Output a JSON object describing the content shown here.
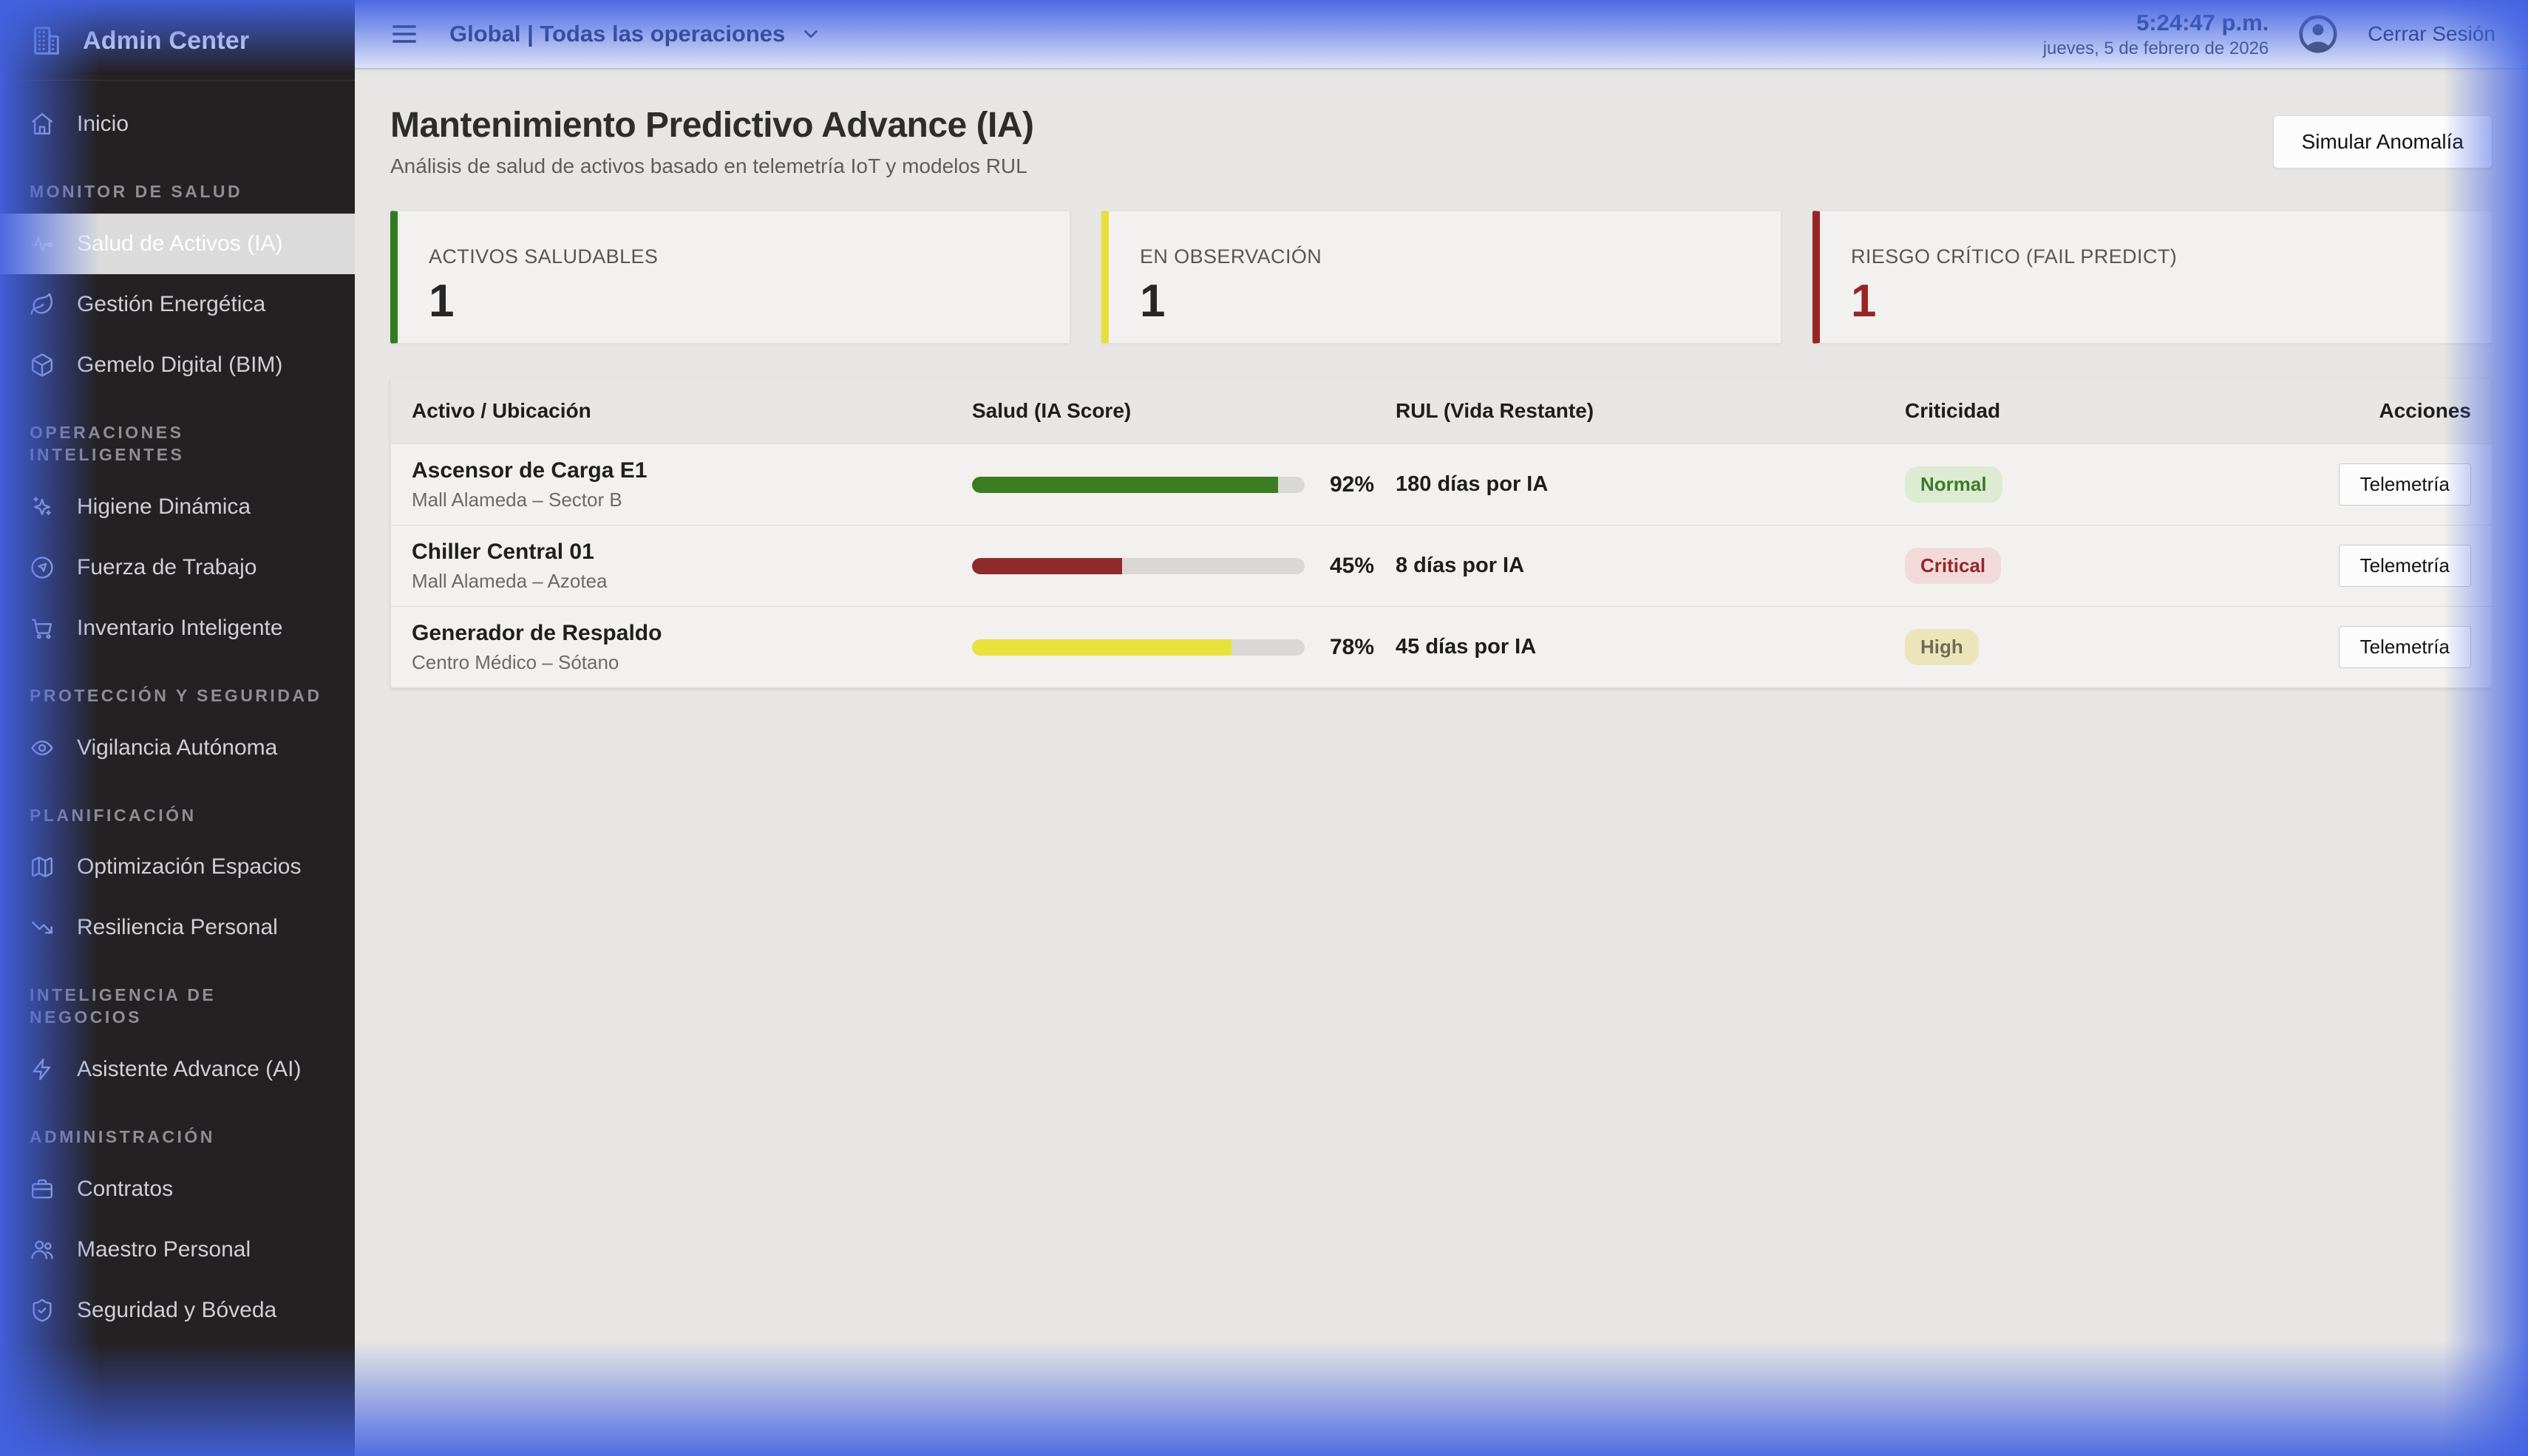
{
  "app": {
    "title": "Admin Center",
    "logo_icon": "building-icon"
  },
  "topbar": {
    "menu_icon": "hamburger-menu-icon",
    "scope": {
      "label": "Global | Todas las operaciones",
      "chevron_icon": "chevron-down-icon"
    },
    "clock": {
      "time": "5:24:47 p.m.",
      "date": "jueves, 5 de febrero de 2026"
    },
    "user": {
      "avatar_icon": "user-avatar-icon",
      "logout_label": "Cerrar Sesión"
    }
  },
  "sidebar": {
    "sections": [
      {
        "heading": "",
        "items": [
          {
            "id": "inicio",
            "label": "Inicio",
            "icon": "home-icon",
            "active": false
          }
        ]
      },
      {
        "heading": "MONITOR DE SALUD",
        "items": [
          {
            "id": "salud-activos",
            "label": "Salud de Activos (IA)",
            "icon": "activity-icon",
            "active": true
          },
          {
            "id": "gestion-energetica",
            "label": "Gestión Energética",
            "icon": "leaf-icon",
            "active": false
          },
          {
            "id": "gemelo-digital",
            "label": "Gemelo Digital (BIM)",
            "icon": "cube-icon",
            "active": false
          }
        ]
      },
      {
        "heading": "OPERACIONES INTELIGENTES",
        "items": [
          {
            "id": "higiene-dinamica",
            "label": "Higiene Dinámica",
            "icon": "sparkles-icon",
            "active": false
          },
          {
            "id": "fuerza-trabajo",
            "label": "Fuerza de Trabajo",
            "icon": "compass-icon",
            "active": false
          },
          {
            "id": "inventario-inteligente",
            "label": "Inventario Inteligente",
            "icon": "cart-icon",
            "active": false
          }
        ]
      },
      {
        "heading": "PROTECCIÓN Y SEGURIDAD",
        "items": [
          {
            "id": "vigilancia-autonoma",
            "label": "Vigilancia Autónoma",
            "icon": "eye-icon",
            "active": false
          }
        ]
      },
      {
        "heading": "PLANIFICACIÓN",
        "items": [
          {
            "id": "optimizacion-espacios",
            "label": "Optimización Espacios",
            "icon": "map-icon",
            "active": false
          },
          {
            "id": "resiliencia-personal",
            "label": "Resiliencia Personal",
            "icon": "trending-down-icon",
            "active": false
          }
        ]
      },
      {
        "heading": "INTELIGENCIA DE NEGOCIOS",
        "items": [
          {
            "id": "asistente-advance",
            "label": "Asistente Advance (AI)",
            "icon": "zap-icon",
            "active": false
          }
        ]
      },
      {
        "heading": "ADMINISTRACIÓN",
        "items": [
          {
            "id": "contratos",
            "label": "Contratos",
            "icon": "briefcase-icon",
            "active": false
          },
          {
            "id": "maestro-personal",
            "label": "Maestro Personal",
            "icon": "users-icon",
            "active": false
          },
          {
            "id": "seguridad-boveda",
            "label": "Seguridad y Bóveda",
            "icon": "shield-check-icon",
            "active": false
          }
        ]
      }
    ]
  },
  "page": {
    "title": "Mantenimiento Predictivo Advance (IA)",
    "subtitle": "Análisis de salud de activos basado en telemetría IoT y modelos RUL",
    "action_button": "Simular Anomalía"
  },
  "stats": [
    {
      "label": "ACTIVOS SALUDABLES",
      "value": "1",
      "accent_color": "#2f7d1f",
      "value_color": "#262626"
    },
    {
      "label": "EN OBSERVACIÓN",
      "value": "1",
      "accent_color": "#e6de39",
      "value_color": "#262626"
    },
    {
      "label": "RIESGO CRÍTICO (FAIL PREDICT)",
      "value": "1",
      "accent_color": "#992424",
      "value_color": "#992424"
    }
  ],
  "table": {
    "columns": [
      "Activo / Ubicación",
      "Salud (IA Score)",
      "RUL (Vida Restante)",
      "Criticidad",
      "Acciones"
    ],
    "rows": [
      {
        "name": "Ascensor de Carga E1",
        "location": "Mall Alameda – Sector B",
        "score_percent": 92,
        "score_label": "92%",
        "rul": "180 días por IA",
        "criticality": "Normal",
        "level": "normal",
        "action": "Telemetría"
      },
      {
        "name": "Chiller Central 01",
        "location": "Mall Alameda – Azotea",
        "score_percent": 45,
        "score_label": "45%",
        "rul": "8 días por IA",
        "criticality": "Critical",
        "level": "critical",
        "action": "Telemetría"
      },
      {
        "name": "Generador de Respaldo",
        "location": "Centro Médico – Sótano",
        "score_percent": 78,
        "score_label": "78%",
        "rul": "45 días por IA",
        "criticality": "High",
        "level": "high",
        "action": "Telemetría"
      }
    ]
  },
  "colors": {
    "edge_glow_blue": "#4263e2",
    "sidebar_bg": "#252122",
    "content_bg": "#e7e6e4",
    "card_bg": "#f2f1ef",
    "bar_green": "#3a7c1f",
    "bar_red": "#8f2a2a",
    "bar_yellow": "#e9e13c"
  }
}
